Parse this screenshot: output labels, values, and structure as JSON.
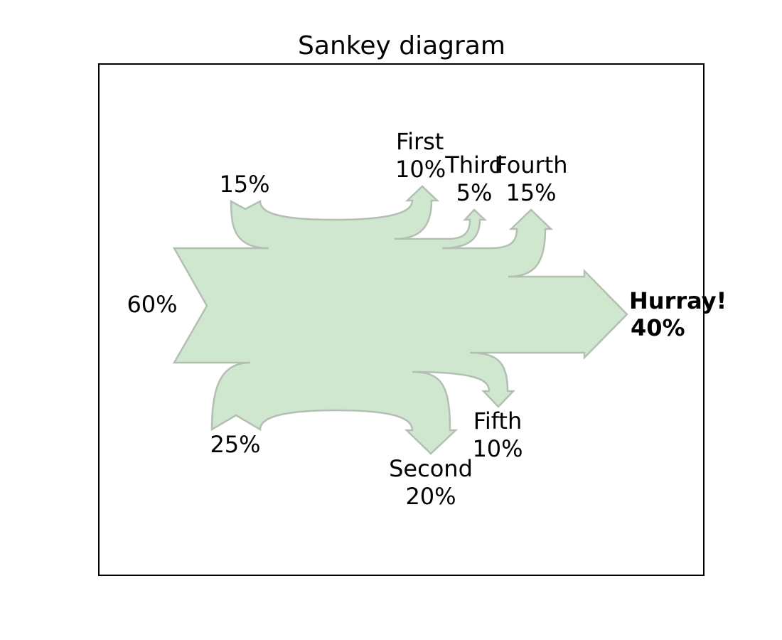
{
  "title": "Sankey diagram",
  "colors": {
    "flow_fill": "#cfe6cf",
    "flow_stroke": "#b4bfb4",
    "text": "#000000",
    "highlight": "#ee0000",
    "frame": "#000000"
  },
  "chart_data": {
    "type": "sankey",
    "grid": false,
    "legend": "none",
    "flows": [
      {
        "label": "",
        "value_label": "60%",
        "value": 0.6,
        "direction": "input-left"
      },
      {
        "label": "",
        "value_label": "15%",
        "value": 0.15,
        "direction": "input-top"
      },
      {
        "label": "",
        "value_label": "25%",
        "value": 0.25,
        "direction": "input-bottom"
      },
      {
        "label": "First",
        "value_label": "10%",
        "value": -0.1,
        "direction": "output-top"
      },
      {
        "label": "Third",
        "value_label": "5%",
        "value": -0.05,
        "direction": "output-top"
      },
      {
        "label": "Fourth",
        "value_label": "15%",
        "value": -0.15,
        "direction": "output-top"
      },
      {
        "label": "Hurray!",
        "value_label": "40%",
        "value": -0.4,
        "direction": "output-right",
        "emphasis": "bold"
      },
      {
        "label": "Fifth",
        "value_label": "10%",
        "value": -0.1,
        "direction": "output-bottom"
      },
      {
        "label": "Second",
        "value_label": "20%",
        "value": -0.2,
        "direction": "output-bottom",
        "color": "#ee0000"
      }
    ]
  }
}
